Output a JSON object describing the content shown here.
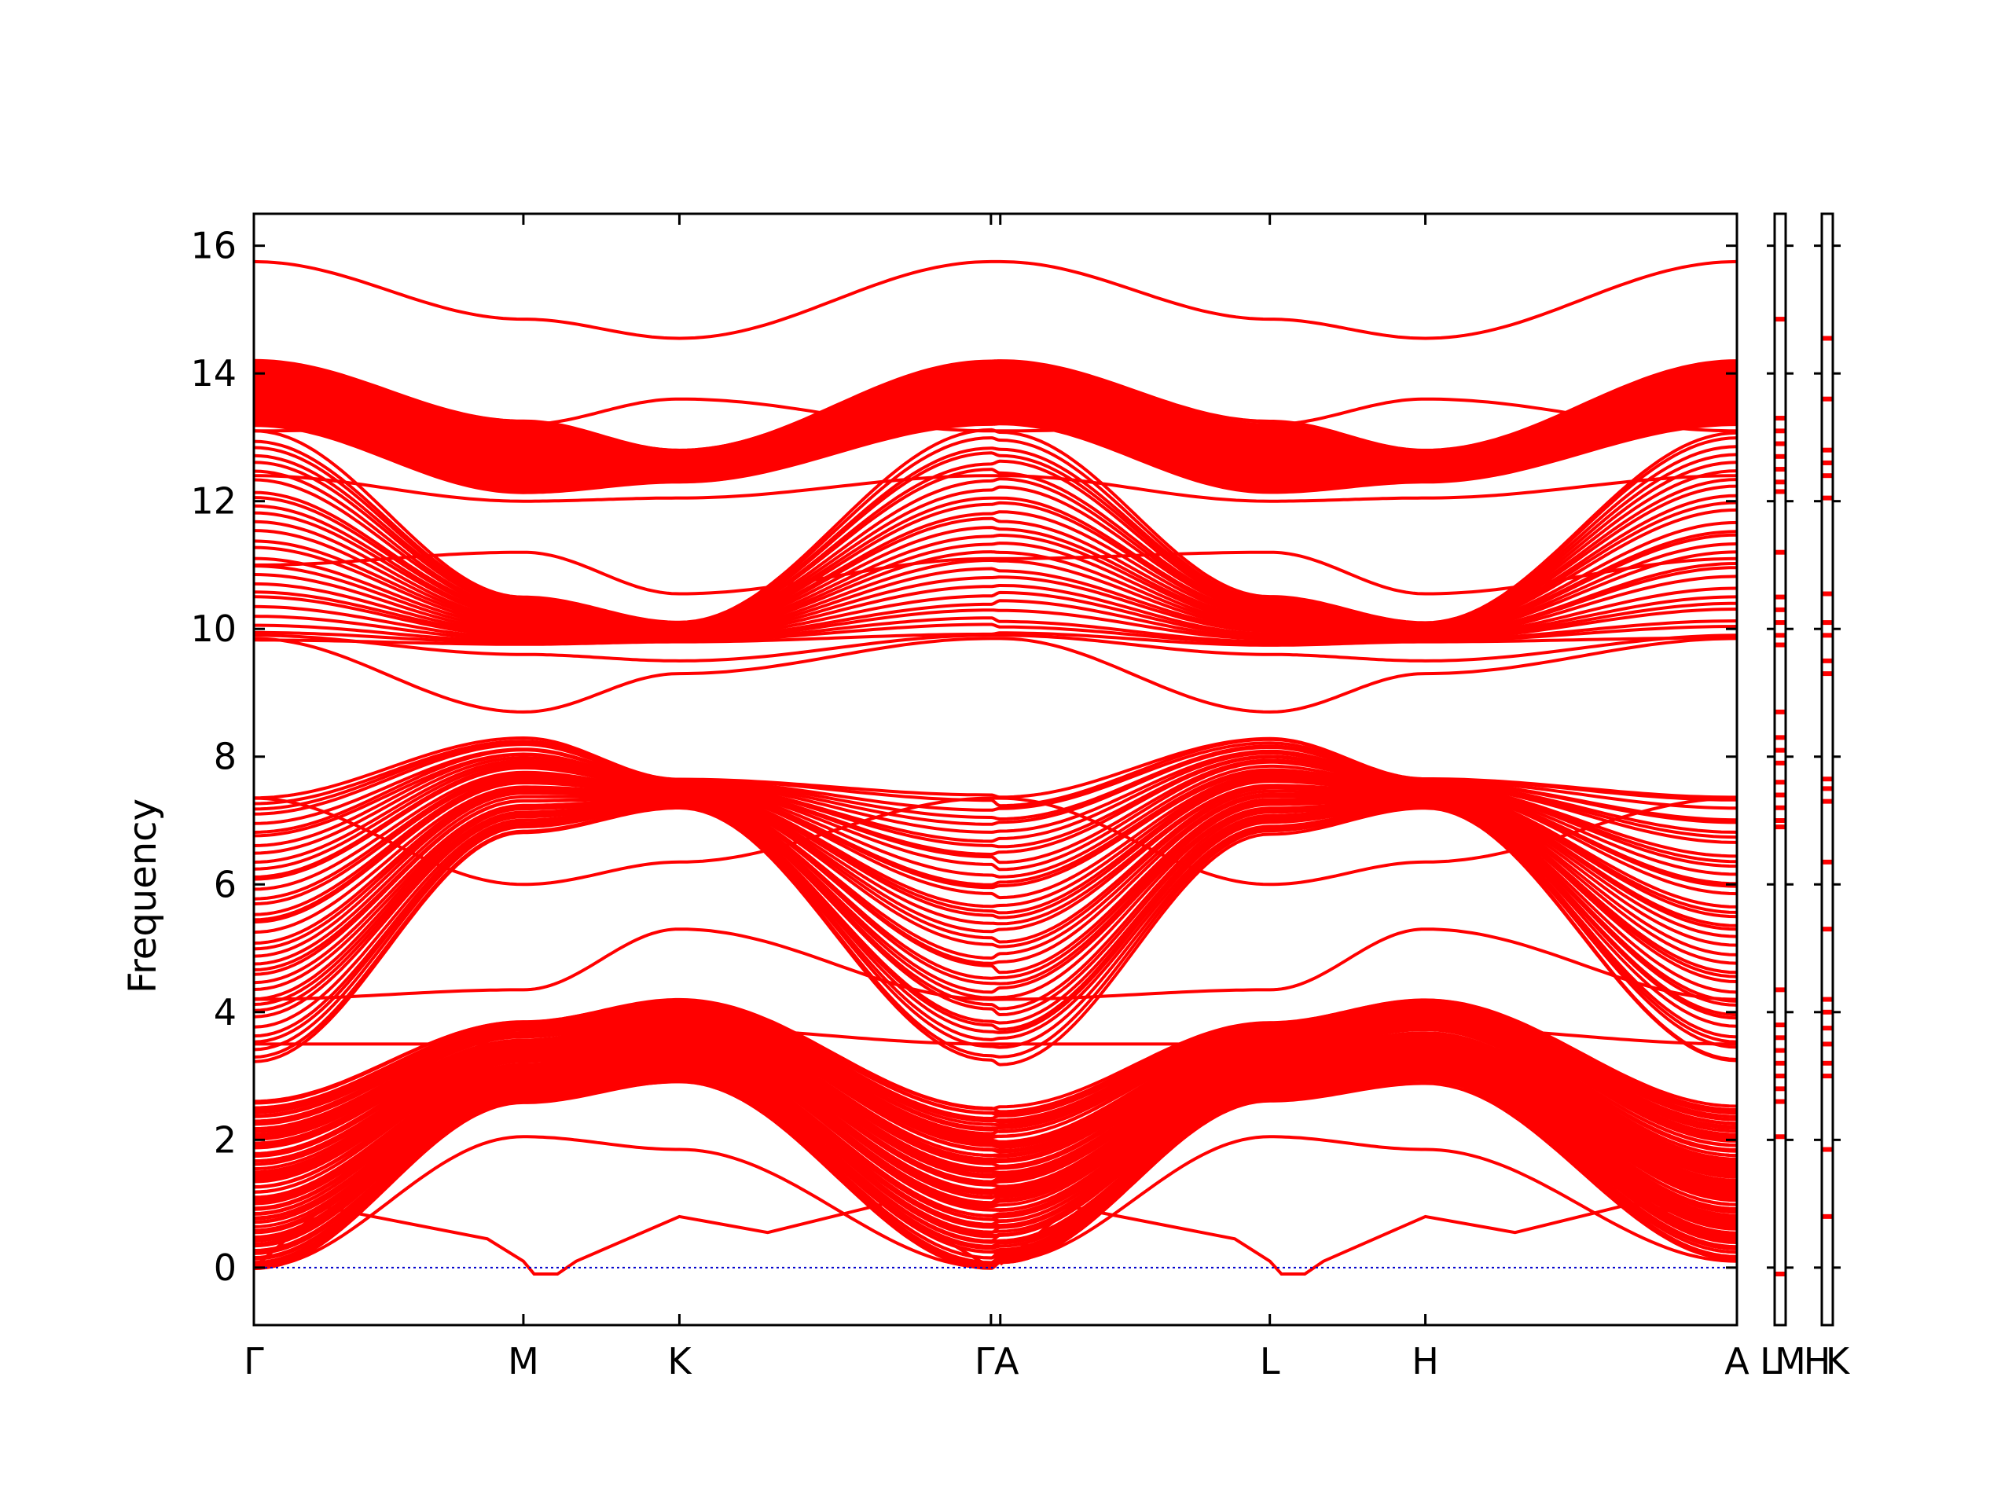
{
  "chart_data": {
    "type": "line",
    "title": "",
    "xlabel": "",
    "ylabel": "Frequency",
    "ylim": [
      -0.9,
      16.5
    ],
    "yticks": [
      0,
      2,
      4,
      6,
      8,
      10,
      12,
      14,
      16
    ],
    "grid": false,
    "legend": "none",
    "line_color": "#ff0000",
    "zero_line_color": "#0000cc",
    "high_symmetry_points": [
      {
        "label": "Γ",
        "x": 0.0
      },
      {
        "label": "M",
        "x": 0.577
      },
      {
        "label": "K",
        "x": 0.911
      },
      {
        "label": "Γ",
        "x": 1.578
      },
      {
        "label": "A",
        "x": 1.598
      },
      {
        "label": "L",
        "x": 2.175
      },
      {
        "label": "H",
        "x": 2.508
      },
      {
        "label": "A",
        "x": 3.175
      }
    ],
    "side_panels": [
      {
        "label": "L",
        "label2": "M",
        "type": "single_point"
      },
      {
        "label": "H",
        "label2": "K",
        "type": "single_point"
      }
    ],
    "series": [
      {
        "values_segment1": [
          0.0,
          0.95,
          0.28,
          -0.1,
          0.1
        ],
        "note_segments": "ΓMK"
      },
      {
        "values_top_band": [
          15.75,
          14.85,
          14.55,
          15.75,
          15.75,
          14.85,
          14.55,
          15.75
        ]
      },
      {
        "values_band_2": [
          12.2,
          12.15,
          12.8,
          14.2,
          14.2,
          12.15,
          12.8,
          14.2
        ]
      },
      {
        "values_band_3": [
          9.85,
          10.4,
          10.0,
          11.2,
          11.2,
          10.4,
          10.0,
          11.2
        ]
      },
      {
        "values_band_4": [
          7.3,
          8.3,
          7.6,
          7.4,
          7.4,
          8.3,
          7.6,
          7.4
        ]
      },
      {
        "values_band_5": [
          2.6,
          3.8,
          4.2,
          2.5,
          2.5,
          3.8,
          4.2,
          2.5
        ]
      }
    ]
  }
}
